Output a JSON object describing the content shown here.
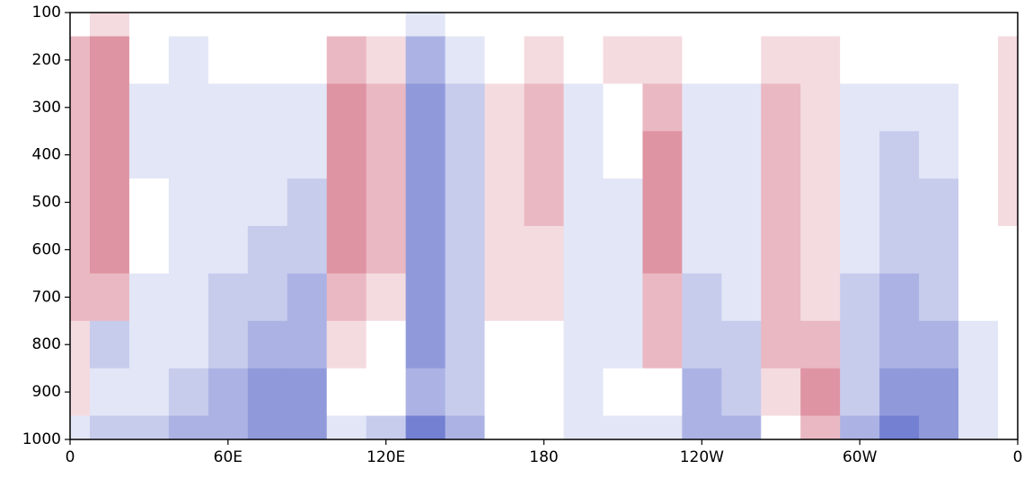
{
  "chart_data": {
    "type": "contour",
    "x": [
      0,
      15,
      30,
      45,
      60,
      75,
      90,
      105,
      120,
      135,
      150,
      165,
      180,
      195,
      210,
      225,
      240,
      255,
      270,
      285,
      300,
      315,
      330,
      345,
      360
    ],
    "y": [
      100,
      200,
      300,
      400,
      500,
      600,
      700,
      800,
      900,
      1000
    ],
    "z": [
      [
        0,
        1,
        0,
        0,
        0,
        0,
        0,
        0,
        0,
        -1,
        0,
        0,
        0,
        0,
        0,
        0,
        0,
        0,
        0,
        0,
        0,
        0,
        0,
        0,
        0
      ],
      [
        2,
        3,
        0,
        -1,
        0,
        0,
        0,
        2,
        1,
        -3,
        -1,
        0,
        1,
        0,
        1,
        1,
        0,
        0,
        1,
        1,
        0,
        0,
        0,
        0,
        1
      ],
      [
        2,
        3,
        -1,
        -1,
        -1,
        -1,
        -1,
        3,
        2,
        -4,
        -2,
        1,
        2,
        -1,
        0,
        2,
        -1,
        -1,
        2,
        1,
        -1,
        -1,
        -1,
        0,
        1
      ],
      [
        2,
        3,
        -1,
        -1,
        -1,
        -1,
        -1,
        3,
        2,
        -4,
        -2,
        1,
        2,
        -1,
        0,
        3,
        -1,
        -1,
        2,
        1,
        -1,
        -2,
        -1,
        0,
        1
      ],
      [
        2,
        3,
        0,
        -1,
        -1,
        -1,
        -2,
        3,
        2,
        -4,
        -2,
        1,
        2,
        -1,
        -1,
        3,
        -1,
        -1,
        2,
        1,
        -1,
        -2,
        -2,
        0,
        1
      ],
      [
        2,
        3,
        0,
        -1,
        -1,
        -2,
        -2,
        3,
        2,
        -4,
        -2,
        1,
        1,
        -1,
        -1,
        3,
        -1,
        -1,
        2,
        1,
        -1,
        -2,
        -2,
        0,
        0
      ],
      [
        2,
        2,
        -1,
        -1,
        -2,
        -2,
        -3,
        2,
        1,
        -4,
        -2,
        1,
        1,
        -1,
        -1,
        2,
        -2,
        -1,
        2,
        1,
        -2,
        -3,
        -2,
        0,
        0
      ],
      [
        1,
        -2,
        -1,
        -1,
        -2,
        -3,
        -3,
        1,
        0,
        -4,
        -2,
        0,
        0,
        -1,
        -1,
        2,
        -2,
        -2,
        2,
        2,
        -2,
        -3,
        -3,
        -1,
        0
      ],
      [
        1,
        -1,
        -1,
        -2,
        -3,
        -4,
        -4,
        0,
        0,
        -3,
        -2,
        0,
        0,
        -1,
        0,
        0,
        -3,
        -2,
        1,
        3,
        -2,
        -4,
        -4,
        -1,
        0
      ],
      [
        -1,
        -2,
        -2,
        -3,
        -3,
        -4,
        -4,
        -1,
        -2,
        -5,
        -3,
        0,
        0,
        -1,
        -1,
        -1,
        -3,
        -3,
        0,
        2,
        -3,
        -5,
        -4,
        -1,
        0
      ]
    ],
    "zlim": [
      -6,
      6
    ],
    "colors": {
      "negative": "#3b4cc0",
      "zero": "#ffffff",
      "positive": "#b40426"
    },
    "xlim": [
      0,
      360
    ],
    "xticks": [
      0,
      {
        "value": 60,
        "label": "60E"
      },
      {
        "value": 120,
        "label": "120E"
      },
      180,
      {
        "value": 240,
        "label": "120W"
      },
      {
        "value": 300,
        "label": "60W"
      },
      {
        "value": 360,
        "label": "0"
      }
    ],
    "ylim": [
      1000,
      100
    ],
    "yticks": [
      100,
      200,
      300,
      400,
      500,
      600,
      700,
      800,
      900,
      1000
    ]
  }
}
